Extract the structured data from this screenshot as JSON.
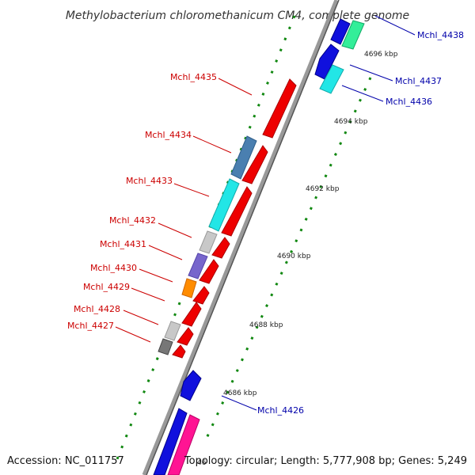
{
  "title": "Methylobacterium chloromethanicum CM4, complete genome",
  "footer": {
    "accession": "Accession: NC_011757",
    "topology": "Topology: circular; Length: 5,777,908 bp; Genes: 5,249",
    "partial_tick": "46"
  },
  "kbp_labels": {
    "k4696": "4696 kbp",
    "k4694": "4694 kbp",
    "k4692": "4692 kbp",
    "k4690": "4690 kbp",
    "k4688": "4688 kbp",
    "k4686": "4686 kbp"
  },
  "gene_labels": {
    "g4438": "Mchl_4438",
    "g4437": "Mchl_4437",
    "g4436": "Mchl_4436",
    "g4435": "Mchl_4435",
    "g4434": "Mchl_4434",
    "g4433": "Mchl_4433",
    "g4432": "Mchl_4432",
    "g4431": "Mchl_4431",
    "g4430": "Mchl_4430",
    "g4429": "Mchl_4429",
    "g4428": "Mchl_4428",
    "g4427": "Mchl_4427",
    "g4426": "Mchl_4426"
  },
  "colors": {
    "forward_cds": "#ee0000",
    "reverse_cds": "#1010dd",
    "cyan": "#22e6e6",
    "steel_blue": "#4a7fb0",
    "slate": "#7766cc",
    "orange": "#ff8c00",
    "light_grey": "#c8c8c8",
    "dark_grey": "#777777",
    "spring_green": "#33ee99",
    "deep_pink": "#ff1493",
    "backbone": "#888888",
    "tick_green": "#118811",
    "label_red": "#cc0000",
    "label_blue": "#0000aa"
  }
}
